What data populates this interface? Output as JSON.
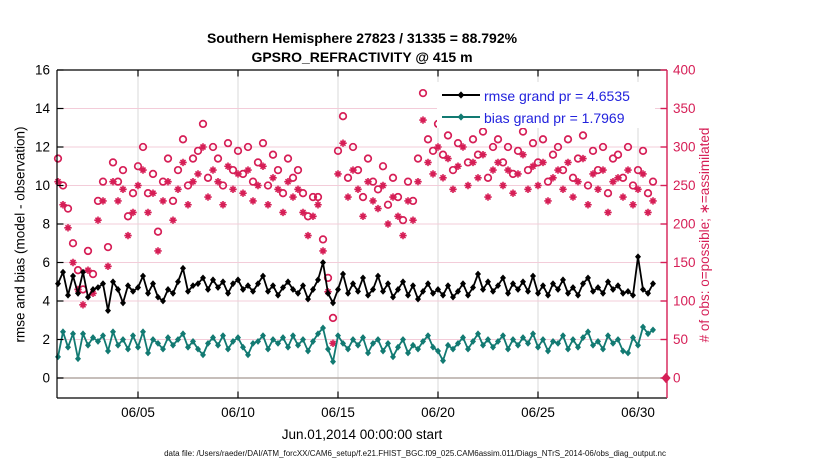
{
  "header": {
    "title_line1": "Southern Hemisphere 27823 / 31335 = 88.792%",
    "title_line2": "GPSRO_REFRACTIVITY @ 415 m"
  },
  "footer": {
    "data_file_note": "data file: /Users/raeder/DAI/ATM_forcXX/CAM6_setup/f.e21.FHIST_BGC.f09_025.CAM6assim.011/Diags_NTrS_2014-06/obs_diag_output.nc"
  },
  "legend": {
    "rmse_label": "rmse grand pr = 4.6535",
    "bias_label": "bias grand pr = 1.7969"
  },
  "colors": {
    "obs_pink": "#d61e56",
    "grid_pink": "#f3ccd9",
    "grid_gray": "#d9d9d9",
    "zero_line_gray": "#b3a9a4",
    "bias_teal": "#127a72",
    "rmse_black": "#000000",
    "legend_text_blue": "#2222dd"
  },
  "chart_data": {
    "type": "line+scatter",
    "title": "Southern Hemisphere 27823 / 31335 = 88.792%",
    "subtitle": "GPSRO_REFRACTIVITY @ 415 m",
    "xlabel": "Jun.01,2014 00:00:00 start",
    "ylabel_left": "rmse and bias (model - observation)",
    "ylabel_right": "# of obs: o=possible; ∗=assimilated",
    "x_axis": {
      "tick_days": [
        4,
        9,
        14,
        19,
        24,
        29
      ],
      "tick_labels": [
        "06/05",
        "06/10",
        "06/15",
        "06/20",
        "06/25",
        "06/30"
      ],
      "range_days": [
        -0.05,
        30.45
      ]
    },
    "y_axis_left": {
      "ticks": [
        0,
        2,
        4,
        6,
        8,
        10,
        12,
        14,
        16
      ],
      "range": [
        -1.04,
        16
      ]
    },
    "y_axis_right": {
      "ticks": [
        0,
        50,
        100,
        150,
        200,
        250,
        300,
        350,
        400
      ],
      "range": [
        -26,
        400
      ]
    },
    "grid": {
      "horizontal_from_right_axis": true,
      "vertical_from_x_axis": true,
      "zero_reference_line_left_axis": true
    },
    "legend_position": "top-right-inside",
    "t_start": 0,
    "t_step_days": 0.25,
    "series": [
      {
        "name": "possible obs count",
        "axis": "right",
        "marker": "open-circle",
        "values": [
          285,
          250,
          220,
          175,
          140,
          115,
          165,
          135,
          230,
          255,
          170,
          280,
          255,
          270,
          210,
          240,
          275,
          300,
          240,
          265,
          190,
          255,
          285,
          230,
          270,
          310,
          250,
          285,
          295,
          330,
          260,
          300,
          285,
          250,
          305,
          270,
          295,
          265,
          300,
          255,
          280,
          305,
          250,
          290,
          270,
          240,
          285,
          260,
          270,
          240,
          210,
          235,
          235,
          180,
          130,
          78,
          295,
          340,
          260,
          300,
          270,
          235,
          285,
          255,
          245,
          275,
          225,
          260,
          235,
          205,
          255,
          230,
          285,
          370,
          310,
          295,
          330,
          290,
          315,
          270,
          305,
          330,
          280,
          310,
          290,
          320,
          260,
          300,
          310,
          280,
          300,
          265,
          295,
          320,
          270,
          305,
          280,
          310,
          255,
          290,
          300,
          270,
          310,
          260,
          285,
          315,
          250,
          295,
          270,
          300,
          240,
          285,
          290,
          260,
          300,
          250,
          270,
          295,
          240,
          255
        ]
      },
      {
        "name": "assimilated obs count",
        "axis": "right",
        "marker": "asterisk",
        "values": [
          255,
          225,
          195,
          150,
          115,
          95,
          140,
          110,
          205,
          230,
          145,
          255,
          230,
          245,
          185,
          215,
          250,
          270,
          215,
          240,
          165,
          230,
          255,
          205,
          245,
          280,
          225,
          255,
          265,
          300,
          235,
          270,
          255,
          225,
          275,
          245,
          265,
          240,
          270,
          230,
          250,
          275,
          225,
          260,
          245,
          215,
          255,
          235,
          245,
          215,
          185,
          210,
          225,
          165,
          112,
          45,
          265,
          305,
          235,
          270,
          245,
          210,
          255,
          230,
          220,
          250,
          200,
          235,
          210,
          185,
          230,
          205,
          255,
          335,
          280,
          265,
          300,
          260,
          285,
          245,
          275,
          300,
          250,
          280,
          260,
          290,
          235,
          270,
          280,
          250,
          270,
          240,
          265,
          290,
          245,
          275,
          250,
          280,
          230,
          260,
          270,
          245,
          280,
          235,
          255,
          285,
          225,
          265,
          245,
          270,
          215,
          255,
          260,
          235,
          270,
          225,
          245,
          265,
          215,
          230
        ]
      },
      {
        "name": "rmse",
        "axis": "left",
        "marker": "filled-diamond",
        "grand_mean": 4.6535,
        "values": [
          4.9,
          5.5,
          4.3,
          5.3,
          4.4,
          5.5,
          4.2,
          4.6,
          4.7,
          4.9,
          3.5,
          5.0,
          4.6,
          3.9,
          4.8,
          4.5,
          4.7,
          5.3,
          4.4,
          4.9,
          4.2,
          4.0,
          4.6,
          4.4,
          5.0,
          5.7,
          4.5,
          4.8,
          4.9,
          5.2,
          4.6,
          5.1,
          4.7,
          5.0,
          4.4,
          4.9,
          5.1,
          4.6,
          4.8,
          4.5,
          4.9,
          5.3,
          4.5,
          4.8,
          4.3,
          4.7,
          5.0,
          4.6,
          4.4,
          4.8,
          4.1,
          4.6,
          5.1,
          6.0,
          4.4,
          3.9,
          4.6,
          5.4,
          4.4,
          4.9,
          4.5,
          5.2,
          4.3,
          4.6,
          5.3,
          4.5,
          4.9,
          4.2,
          4.6,
          5.0,
          4.3,
          4.8,
          4.1,
          4.5,
          4.9,
          4.4,
          4.6,
          4.3,
          4.8,
          4.2,
          4.5,
          4.9,
          4.3,
          4.7,
          5.4,
          4.6,
          5.0,
          4.5,
          4.8,
          5.2,
          4.4,
          4.9,
          4.6,
          5.0,
          4.5,
          5.3,
          4.4,
          4.8,
          4.3,
          4.9,
          4.6,
          5.1,
          4.4,
          4.7,
          4.3,
          4.9,
          5.2,
          4.5,
          4.7,
          4.4,
          5.0,
          4.6,
          4.8,
          4.4,
          4.5,
          4.3,
          6.3,
          4.6,
          4.4,
          4.9
        ]
      },
      {
        "name": "bias",
        "axis": "left",
        "marker": "filled-diamond",
        "grand_mean": 1.7969,
        "values": [
          1.1,
          2.4,
          1.6,
          2.3,
          1.0,
          2.3,
          1.7,
          2.1,
          1.9,
          2.2,
          1.4,
          2.4,
          1.7,
          2.0,
          1.5,
          2.2,
          1.6,
          2.4,
          1.3,
          2.0,
          1.8,
          1.5,
          2.1,
          1.7,
          2.0,
          2.3,
          1.6,
          1.9,
          1.5,
          1.2,
          1.8,
          2.1,
          1.7,
          2.2,
          1.5,
          1.9,
          2.1,
          1.6,
          1.2,
          1.8,
          1.9,
          2.2,
          1.5,
          2.0,
          1.8,
          2.1,
          1.6,
          2.2,
          1.7,
          2.0,
          1.4,
          1.9,
          2.3,
          2.6,
          1.5,
          0.85,
          2.2,
          1.8,
          1.5,
          2.0,
          1.7,
          2.1,
          1.3,
          1.8,
          2.0,
          1.4,
          1.8,
          1.1,
          1.6,
          2.0,
          1.3,
          1.7,
          1.5,
          1.9,
          2.2,
          1.6,
          1.4,
          0.9,
          1.7,
          1.5,
          1.8,
          2.1,
          1.5,
          1.9,
          2.3,
          1.7,
          2.0,
          1.6,
          1.9,
          2.2,
          1.5,
          2.0,
          1.7,
          2.1,
          1.8,
          2.3,
          1.6,
          2.0,
          1.4,
          1.9,
          1.8,
          2.2,
          1.5,
          2.0,
          1.6,
          2.1,
          2.4,
          1.7,
          1.9,
          1.5,
          2.2,
          1.8,
          2.0,
          1.4,
          1.3,
          2.1,
          1.7,
          2.65,
          2.3,
          2.5
        ]
      }
    ],
    "extra_points": [
      {
        "series": "obs count",
        "t_days": 30.4,
        "value": 0,
        "marker": "filled-diamond",
        "note": "zero obs marker at right axis"
      }
    ]
  }
}
